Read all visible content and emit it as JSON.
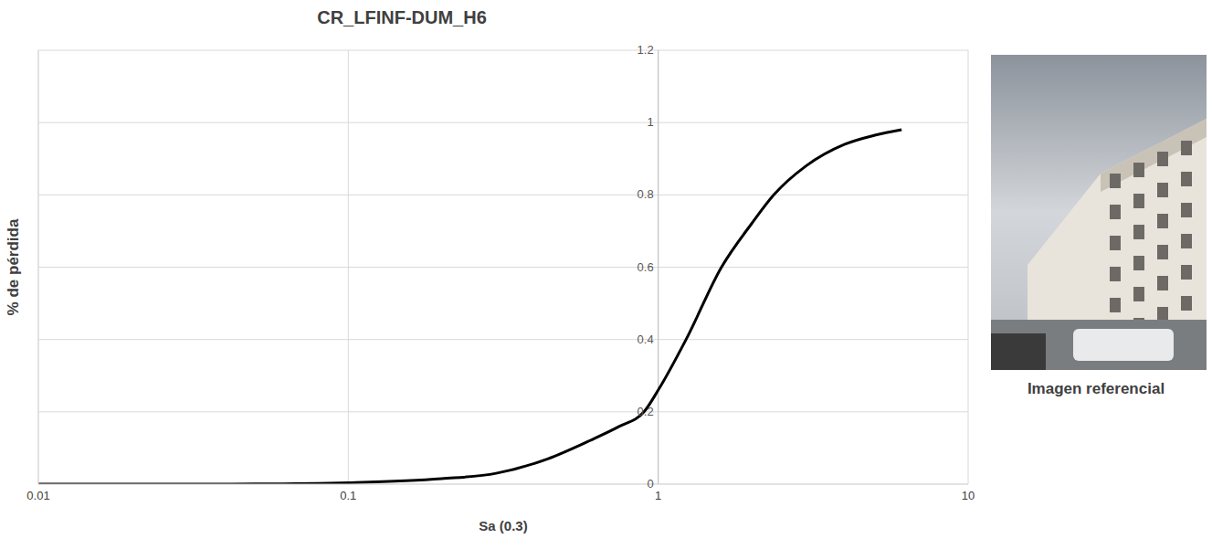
{
  "chart_data": {
    "type": "line",
    "title": "CR_LFINF-DUM_H6",
    "x_label": "Sa (0.3)",
    "y_label": "% de pérdida",
    "x": [
      0.01,
      0.03,
      0.05,
      0.1,
      0.2,
      0.3,
      0.44,
      0.6,
      0.75,
      0.9,
      1,
      1.23,
      1.6,
      2,
      2.36,
      3,
      4,
      5,
      6.1
    ],
    "values": [
      0,
      0,
      0.0005,
      0.004,
      0.015,
      0.03,
      0.07,
      0.12,
      0.16,
      0.2,
      0.26,
      0.4,
      0.6,
      0.72,
      0.8,
      0.88,
      0.94,
      0.965,
      0.98
    ],
    "color": "#000000",
    "xlim": [
      0.01,
      10
    ],
    "xticks": [
      0.01,
      0.1,
      1,
      10
    ],
    "ylim": [
      0,
      1.2
    ],
    "yticks": [
      0,
      0.2,
      0.4,
      0.6,
      0.8,
      1,
      1.2
    ],
    "log": "x",
    "grid": true
  },
  "image": {
    "caption": "Imagen referencial"
  }
}
